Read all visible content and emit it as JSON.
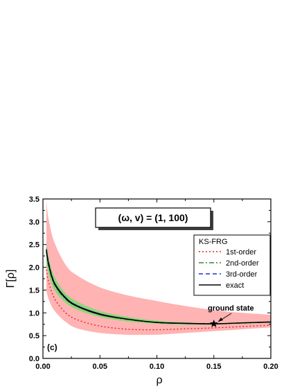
{
  "chart_data": {
    "type": "line",
    "xlabel": "ρ",
    "ylabel": "Γ[ρ]",
    "xlim": [
      0.0,
      0.2
    ],
    "ylim": [
      0.0,
      3.5
    ],
    "xticks": [
      "0.00",
      "0.05",
      "0.10",
      "0.15",
      "0.20"
    ],
    "yticks": [
      "0.0",
      "0.5",
      "1.0",
      "1.5",
      "2.0",
      "2.5",
      "3.0",
      "3.5"
    ],
    "parameter_box": "(ω, v) = (1, 100)",
    "panel_label": "(c)",
    "legend_title": "KS-FRG",
    "legend_position": "right",
    "x": [
      0.003,
      0.005,
      0.01,
      0.02,
      0.03,
      0.05,
      0.075,
      0.1,
      0.125,
      0.15,
      0.175,
      0.2
    ],
    "series": [
      {
        "name": "1st-order",
        "style": "dotted",
        "color": "#e0202a",
        "values": [
          1.95,
          1.68,
          1.32,
          1.0,
          0.85,
          0.71,
          0.64,
          0.63,
          0.65,
          0.67,
          0.7,
          0.73
        ]
      },
      {
        "name": "2nd-order",
        "style": "dash-dot",
        "color": "#2e8b2e",
        "values": [
          2.33,
          2.02,
          1.62,
          1.3,
          1.14,
          0.96,
          0.85,
          0.79,
          0.77,
          0.76,
          0.78,
          0.8
        ]
      },
      {
        "name": "3rd-order",
        "style": "dashed",
        "color": "#1f2fd0",
        "values": [
          2.4,
          2.1,
          1.67,
          1.33,
          1.16,
          0.97,
          0.86,
          0.79,
          0.77,
          0.76,
          0.78,
          0.8
        ]
      },
      {
        "name": "exact",
        "style": "solid",
        "color": "#000000",
        "values": [
          2.38,
          2.07,
          1.65,
          1.32,
          1.15,
          0.97,
          0.86,
          0.79,
          0.77,
          0.76,
          0.78,
          0.8
        ]
      }
    ],
    "bands": [
      {
        "color": "#ffb3b3",
        "lower": [
          1.5,
          1.3,
          1.05,
          0.8,
          0.66,
          0.56,
          0.52,
          0.52,
          0.56,
          0.6,
          0.64,
          0.68
        ],
        "upper": [
          3.45,
          3.05,
          2.55,
          2.05,
          1.82,
          1.56,
          1.38,
          1.26,
          1.15,
          1.06,
          1.0,
          0.96
        ]
      },
      {
        "color": "#8fd47a",
        "lower": [
          2.1,
          1.85,
          1.5,
          1.22,
          1.07,
          0.91,
          0.81,
          0.76,
          0.74,
          0.74,
          0.76,
          0.78
        ],
        "upper": [
          2.55,
          2.22,
          1.8,
          1.43,
          1.25,
          1.04,
          0.91,
          0.83,
          0.79,
          0.77,
          0.79,
          0.81
        ]
      },
      {
        "color": "#20207a",
        "lower": [
          2.3,
          2.02,
          1.62,
          1.3,
          1.13,
          0.95,
          0.85,
          0.78,
          0.76,
          0.755,
          0.775,
          0.795
        ],
        "upper": [
          2.45,
          2.12,
          1.69,
          1.35,
          1.17,
          0.99,
          0.87,
          0.8,
          0.78,
          0.765,
          0.785,
          0.805
        ]
      }
    ],
    "marker": {
      "x": 0.15,
      "y": 0.76,
      "symbol": "star",
      "label": "ground state"
    }
  }
}
